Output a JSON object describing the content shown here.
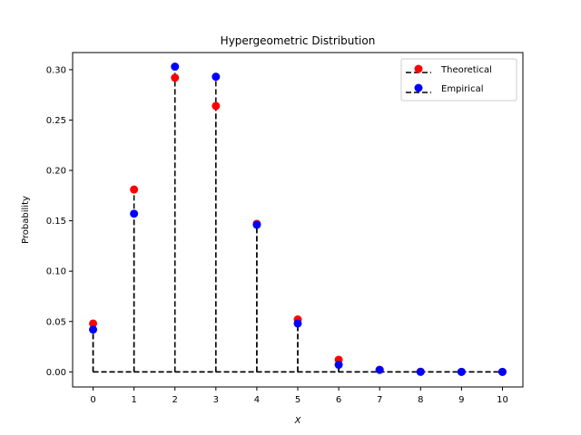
{
  "chart_data": {
    "type": "scatter",
    "title": "Hypergeometric Distribution",
    "xlabel": "X",
    "ylabel": "Probability",
    "x": [
      0,
      1,
      2,
      3,
      4,
      5,
      6,
      7,
      8,
      9,
      10
    ],
    "xlim": [
      -0.5,
      10.5
    ],
    "ylim": [
      -0.015,
      0.317
    ],
    "xticks": [
      0,
      1,
      2,
      3,
      4,
      5,
      6,
      7,
      8,
      9,
      10
    ],
    "yticks": [
      0.0,
      0.05,
      0.1,
      0.15,
      0.2,
      0.25,
      0.3
    ],
    "ytick_labels": [
      "0.00",
      "0.05",
      "0.10",
      "0.15",
      "0.20",
      "0.25",
      "0.30"
    ],
    "grid": false,
    "legend_position": "top-right",
    "series": [
      {
        "name": "Theoretical",
        "color": "#ff0000",
        "values": [
          0.048,
          0.181,
          0.292,
          0.264,
          0.147,
          0.052,
          0.012,
          0.002,
          0.0002,
          0.0,
          0.0
        ],
        "stem_style": "dashed",
        "stem_color": "#000000"
      },
      {
        "name": "Empirical",
        "color": "#0000ff",
        "values": [
          0.042,
          0.157,
          0.303,
          0.293,
          0.146,
          0.048,
          0.007,
          0.002,
          0.0,
          0.0,
          0.0
        ],
        "stem_style": "dashed",
        "stem_color": "#000000"
      }
    ]
  }
}
